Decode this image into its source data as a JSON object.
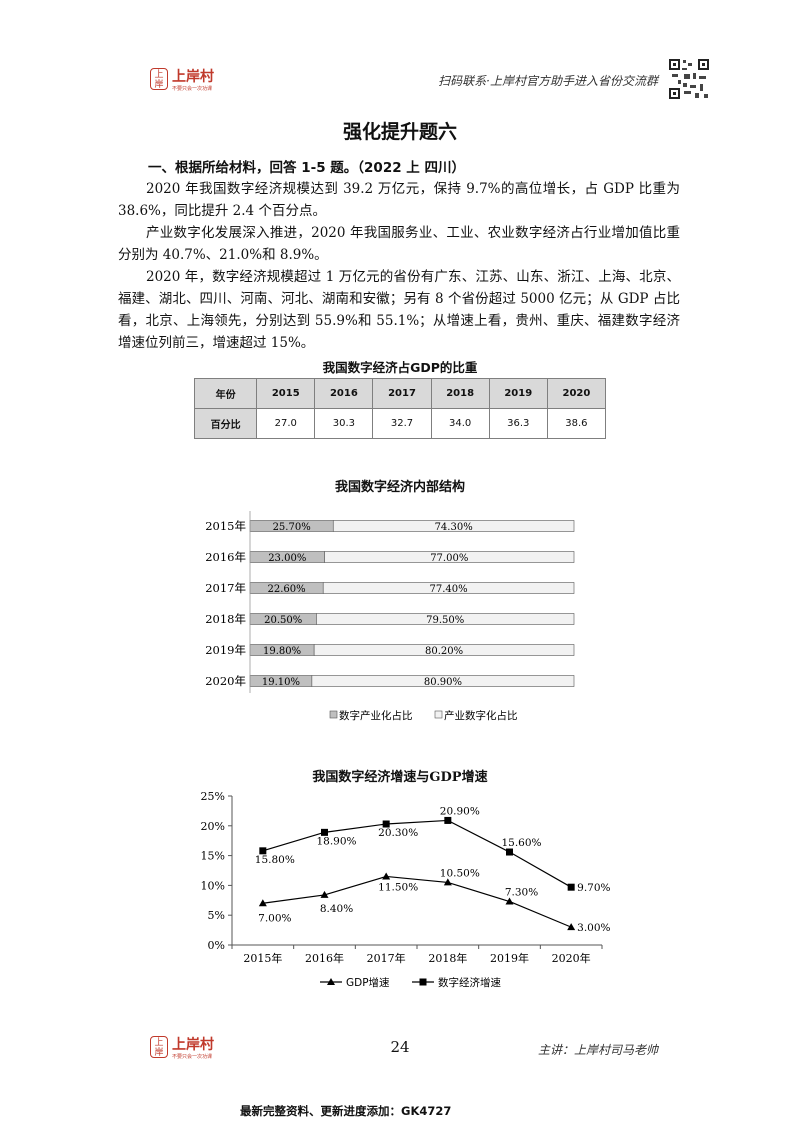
{
  "header": {
    "logo_seal": "上岸",
    "logo_name": "上岸村",
    "logo_slogan": "不要只会一次功课",
    "slogan": "扫码联系·上岸村官方助手进入省份交流群"
  },
  "title": "强化提升题六",
  "question": {
    "heading": "一、根据所给材料，回答 1-5 题。（2022 上  四川）",
    "paragraphs": [
      "2020 年我国数字经济规模达到 39.2 万亿元，保持 9.7%的高位增长，占 GDP 比重为 38.6%，同比提升 2.4 个百分点。",
      "产业数字化发展深入推进，2020 年我国服务业、工业、农业数字经济占行业增加值比重分别为 40.7%、21.0%和 8.9%。",
      "2020 年，数字经济规模超过 1 万亿元的省份有广东、江苏、山东、浙江、上海、北京、福建、湖北、四川、河南、河北、湖南和安徽；另有 8 个省份超过 5000 亿元；从 GDP 占比看，北京、上海领先，分别达到 55.9%和 55.1%；从增速上看，贵州、重庆、福建数字经济增速位列前三，增速超过 15%。"
    ]
  },
  "table": {
    "title": "我国数字经济占GDP的比重",
    "row_headers": [
      "年份",
      "百分比"
    ],
    "years": [
      "2015",
      "2016",
      "2017",
      "2018",
      "2019",
      "2020"
    ],
    "values": [
      "27.0",
      "30.3",
      "32.7",
      "34.0",
      "36.3",
      "38.6"
    ]
  },
  "chart_data": [
    {
      "type": "bar",
      "orientation": "horizontal-stacked-100",
      "title": "我国数字经济内部结构",
      "categories": [
        "2015年",
        "2016年",
        "2017年",
        "2018年",
        "2019年",
        "2020年"
      ],
      "series": [
        {
          "name": "数字产业化占比",
          "values": [
            25.7,
            23.0,
            22.6,
            20.5,
            19.8,
            19.1
          ],
          "labels": [
            "25.70%",
            "23.00%",
            "22.60%",
            "20.50%",
            "19.80%",
            "19.10%"
          ],
          "color": "#bfbfbf"
        },
        {
          "name": "产业数字化占比",
          "values": [
            74.3,
            77.0,
            77.4,
            79.5,
            80.2,
            80.9
          ],
          "labels": [
            "74.30%",
            "77.00%",
            "77.40%",
            "79.50%",
            "80.20%",
            "80.90%"
          ],
          "color": "#f2f2f2"
        }
      ],
      "xlim": [
        0,
        100
      ],
      "legend_position": "bottom"
    },
    {
      "type": "line",
      "title": "我国数字经济增速与GDP增速",
      "categories": [
        "2015年",
        "2016年",
        "2017年",
        "2018年",
        "2019年",
        "2020年"
      ],
      "yticks": [
        "0%",
        "5%",
        "10%",
        "15%",
        "20%",
        "25%"
      ],
      "ylim": [
        0,
        25
      ],
      "series": [
        {
          "name": "GDP增速",
          "marker": "triangle",
          "values": [
            7.0,
            8.4,
            11.5,
            10.5,
            7.3,
            3.0
          ],
          "labels": [
            "7.00%",
            "8.40%",
            "11.50%",
            "10.50%",
            "7.30%",
            "3.00%"
          ]
        },
        {
          "name": "数字经济增速",
          "marker": "square",
          "values": [
            15.8,
            18.9,
            20.3,
            20.9,
            15.6,
            9.7
          ],
          "labels": [
            "15.80%",
            "18.90%",
            "20.30%",
            "20.90%",
            "15.60%",
            "9.70%"
          ]
        }
      ],
      "legend_position": "bottom"
    }
  ],
  "footer": {
    "page_number": "24",
    "lecturer": "主讲：上岸村司马老帅",
    "bottom_note": "最新完整资料、更新进度添加：GK4727"
  }
}
